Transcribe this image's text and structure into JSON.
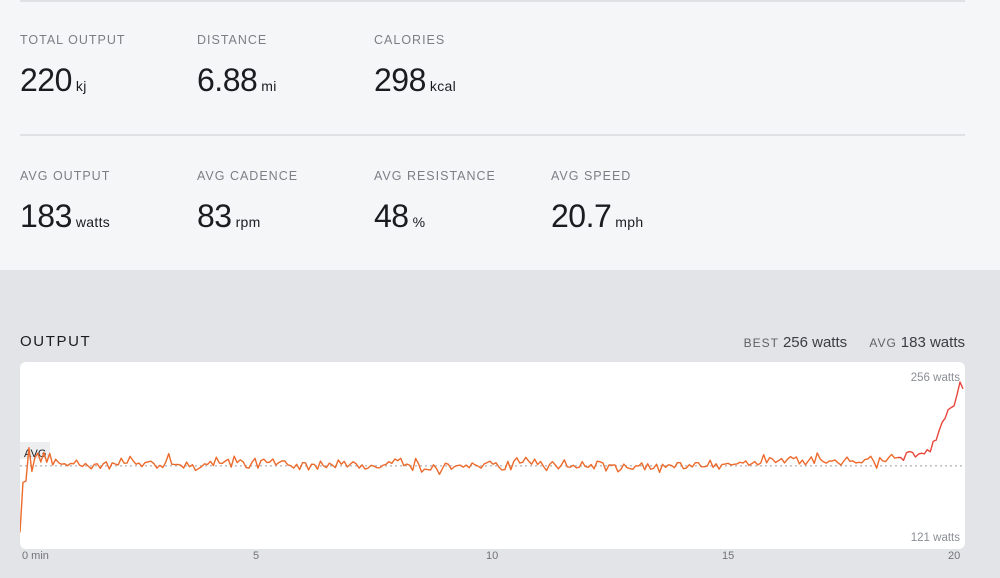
{
  "summary": {
    "row1": [
      {
        "label": "TOTAL OUTPUT",
        "value": "220",
        "unit": "kj"
      },
      {
        "label": "DISTANCE",
        "value": "6.88",
        "unit": "mi"
      },
      {
        "label": "CALORIES",
        "value": "298",
        "unit": "kcal"
      }
    ],
    "row2": [
      {
        "label": "AVG OUTPUT",
        "value": "183",
        "unit": "watts"
      },
      {
        "label": "AVG CADENCE",
        "value": "83",
        "unit": "rpm"
      },
      {
        "label": "AVG RESISTANCE",
        "value": "48",
        "unit": "%"
      },
      {
        "label": "AVG SPEED",
        "value": "20.7",
        "unit": "mph"
      }
    ]
  },
  "output": {
    "title": "OUTPUT",
    "best_label": "BEST",
    "best_value": "256 watts",
    "avg_label": "AVG",
    "avg_value": "183 watts"
  },
  "colors": {
    "line": "#ec6a2b",
    "line_end": "#e8453c",
    "avg_line": "#9a9da3"
  },
  "chart_data": {
    "type": "line",
    "title": "OUTPUT",
    "xlabel": "",
    "ylabel": "",
    "x_unit": "min",
    "xlim": [
      0,
      20
    ],
    "ylim": [
      121,
      256
    ],
    "x_ticks": [
      "0 min",
      "5",
      "10",
      "15",
      "20"
    ],
    "y_max_label": "256 watts",
    "y_min_label": "121 watts",
    "avg_label": "AVG",
    "avg_value": 183,
    "grid": false,
    "series": [
      {
        "values": [
          125.0,
          168.6,
          169.7,
          198.8,
          178.2,
          190.1,
          194.0,
          186.3,
          194.6,
          186.1,
          193.8,
          183.8,
          188.7,
          185.7,
          184.4,
          184.8,
          183.1,
          185.1,
          184.7,
          188.0,
          183.6,
          182.4,
          185.0,
          182.5,
          180.4,
          184.3,
          184.7,
          180.8,
          184.8,
          186.5,
          180.2,
          185.6,
          184.6,
          183.7,
          189.6,
          185.3,
          185.4,
          191.2,
          187.5,
          184.4,
          185.4,
          182.3,
          185.7,
          186.4,
          187.0,
          185.0,
          181.0,
          183.4,
          181.5,
          186.1,
          193.6,
          184.4,
          184.1,
          184.2,
          183.7,
          181.1,
          186.2,
          182.2,
          184.0,
          179.0,
          180.5,
          182.2,
          184.7,
          184.1,
          186.9,
          183.3,
          190.5,
          185.4,
          185.1,
          187.1,
          188.7,
          181.9,
          191.4,
          185.8,
          188.2,
          186.6,
          181.5,
          181.1,
          186.1,
          189.5,
          181.0,
          187.5,
          188.8,
          185.8,
          186.3,
          189.0,
          183.8,
          185.8,
          187.2,
          187.2,
          183.9,
          183.1,
          181.0,
          184.3,
          179.8,
          185.8,
          185.5,
          179.4,
          184.4,
          184.2,
          180.0,
          187.1,
          183.1,
          181.4,
          185.3,
          183.6,
          181.4,
          188.1,
          184.4,
          186.9,
          182.0,
          184.4,
          186.5,
          184.8,
          181.0,
          183.8,
          180.2,
          181.0,
          183.4,
          182.7,
          181.3,
          181.4,
          183.5,
          184.2,
          186.6,
          185.1,
          188.9,
          187.5,
          189.6,
          183.2,
          184.5,
          183.5,
          179.0,
          189.4,
          184.7,
          177.5,
          180.1,
          179.7,
          179.3,
          183.9,
          180.6,
          175.5,
          180.6,
          185.3,
          184.3,
          180.0,
          182.2,
          183.2,
          183.6,
          181.8,
          183.7,
          181.3,
          185.5,
          183.8,
          182.7,
          181.0,
          184.6,
          185.8,
          187.0,
          184.4,
          185.7,
          181.9,
          179.3,
          179.7,
          186.9,
          179.6,
          186.9,
          190.0,
          185.4,
          186.1,
          190.4,
          187.1,
          184.4,
          188.9,
          184.1,
          186.8,
          182.4,
          178.9,
          184.1,
          186.6,
          183.6,
          180.4,
          183.7,
          188.2,
          182.0,
          181.8,
          183.5,
          181.3,
          181.7,
          186.6,
          182.4,
          181.7,
          184.1,
          180.4,
          187.0,
          186.5,
          185.3,
          178.5,
          183.8,
          183.6,
          183.8,
          177.8,
          179.8,
          184.5,
          181.5,
          180.6,
          180.0,
          183.0,
          182.9,
          185.6,
          179.6,
          184.8,
          180.0,
          180.9,
          184.4,
          177.3,
          184.3,
          181.7,
          183.9,
          183.3,
          181.4,
          185.8,
          185.7,
          180.5,
          181.0,
          184.0,
          182.0,
          185.6,
          185.8,
          182.2,
          182.1,
          182.8,
          187.9,
          181.6,
          184.8,
          180.1,
          184.2,
          184.5,
          185.2,
          183.8,
          184.3,
          184.6,
          186.1,
          185.4,
          187.3,
          183.4,
          184.9,
          186.7,
          183.8,
          185.4,
          192.7,
          185.6,
          190.1,
          188.8,
          185.9,
          187.5,
          189.3,
          185.5,
          188.8,
          191.0,
          189.2,
          190.7,
          184.7,
          188.0,
          183.9,
          187.2,
          190.8,
          185.1,
          194.2,
          188.9,
          186.6,
          185.3,
          187.1,
          187.2,
          188.1,
          185.6,
          183.7,
          187.4,
          190.6,
          186.9,
          187.2,
          185.5,
          186.1,
          185.6,
          188.4,
          189.0,
          191.3,
          186.8,
          180.9,
          190.1,
          187.3,
          186.7,
          190.1,
          192.9,
          189.7,
          190.2,
          190.3,
          187.7,
          194.4,
          195.4,
          194.8,
          190.7,
          193.1,
          194.0,
          193.4,
          197.1,
          195.2,
          204.4,
          205.4,
          213.9,
          220.9,
          224.5,
          231.9,
          233.7,
          235.2,
          245.0,
          256.0,
          250.0
        ]
      }
    ]
  }
}
